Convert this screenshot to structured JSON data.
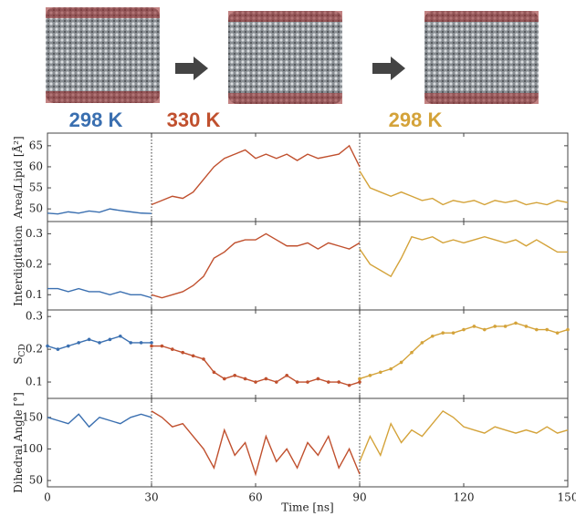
{
  "header": {
    "labels": [
      {
        "text": "298 K",
        "color": "#3a6fb0"
      },
      {
        "text": "330 K",
        "color": "#c0502e"
      },
      {
        "text": "298 K",
        "color": "#d4a33a"
      }
    ]
  },
  "chart_data": [
    {
      "type": "line",
      "ylabel": "Area/Lipid [Å²]",
      "xlim": [
        0,
        150
      ],
      "ylim": [
        47,
        68
      ],
      "yticks": [
        50,
        55,
        60,
        65
      ],
      "vlines": [
        30,
        90
      ],
      "x": [
        0,
        3,
        6,
        9,
        12,
        15,
        18,
        21,
        24,
        27,
        30,
        33,
        36,
        39,
        42,
        45,
        48,
        51,
        54,
        57,
        60,
        63,
        66,
        69,
        72,
        75,
        78,
        81,
        84,
        87,
        90,
        93,
        96,
        99,
        102,
        105,
        108,
        111,
        114,
        117,
        120,
        123,
        126,
        129,
        132,
        135,
        138,
        141,
        144,
        147,
        150
      ],
      "series": [
        {
          "color": "#3a6fb0",
          "values": [
            49,
            48.8,
            49.3,
            49,
            49.5,
            49.2,
            50,
            49.6,
            49.3,
            49,
            48.9,
            null,
            null,
            null,
            null,
            null,
            null,
            null,
            null,
            null,
            null,
            null,
            null,
            null,
            null,
            null,
            null,
            null,
            null,
            null,
            null,
            null,
            null,
            null,
            null,
            null,
            null,
            null,
            null,
            null,
            null,
            null,
            null,
            null,
            null,
            null,
            null,
            null,
            null,
            null,
            null
          ]
        },
        {
          "color": "#c0502e",
          "values": [
            null,
            null,
            null,
            null,
            null,
            null,
            null,
            null,
            null,
            null,
            51,
            52,
            53,
            52.5,
            54,
            57,
            60,
            62,
            63,
            64,
            62,
            63,
            62,
            63,
            61.5,
            63,
            62,
            62.5,
            63,
            65,
            60,
            null,
            null,
            null,
            null,
            null,
            null,
            null,
            null,
            null,
            null,
            null,
            null,
            null,
            null,
            null,
            null,
            null,
            null,
            null,
            null
          ]
        },
        {
          "color": "#d4a33a",
          "values": [
            null,
            null,
            null,
            null,
            null,
            null,
            null,
            null,
            null,
            null,
            null,
            null,
            null,
            null,
            null,
            null,
            null,
            null,
            null,
            null,
            null,
            null,
            null,
            null,
            null,
            null,
            null,
            null,
            null,
            null,
            59,
            55,
            54,
            53,
            54,
            53,
            52,
            52.5,
            51,
            52,
            51.5,
            52,
            51,
            52,
            51.5,
            52,
            51,
            51.5,
            51,
            52,
            51.5
          ]
        }
      ]
    },
    {
      "type": "line",
      "ylabel": "Interdigitation",
      "xlim": [
        0,
        150
      ],
      "ylim": [
        0.05,
        0.34
      ],
      "yticks": [
        0.1,
        0.2,
        0.3
      ],
      "vlines": [
        30,
        90
      ],
      "x": [
        0,
        3,
        6,
        9,
        12,
        15,
        18,
        21,
        24,
        27,
        30,
        33,
        36,
        39,
        42,
        45,
        48,
        51,
        54,
        57,
        60,
        63,
        66,
        69,
        72,
        75,
        78,
        81,
        84,
        87,
        90,
        93,
        96,
        99,
        102,
        105,
        108,
        111,
        114,
        117,
        120,
        123,
        126,
        129,
        132,
        135,
        138,
        141,
        144,
        147,
        150
      ],
      "series": [
        {
          "color": "#3a6fb0",
          "values": [
            0.12,
            0.12,
            0.11,
            0.12,
            0.11,
            0.11,
            0.1,
            0.11,
            0.1,
            0.1,
            0.09,
            null,
            null,
            null,
            null,
            null,
            null,
            null,
            null,
            null,
            null,
            null,
            null,
            null,
            null,
            null,
            null,
            null,
            null,
            null,
            null,
            null,
            null,
            null,
            null,
            null,
            null,
            null,
            null,
            null,
            null,
            null,
            null,
            null,
            null,
            null,
            null,
            null,
            null,
            null,
            null
          ]
        },
        {
          "color": "#c0502e",
          "values": [
            null,
            null,
            null,
            null,
            null,
            null,
            null,
            null,
            null,
            null,
            0.1,
            0.09,
            0.1,
            0.11,
            0.13,
            0.16,
            0.22,
            0.24,
            0.27,
            0.28,
            0.28,
            0.3,
            0.28,
            0.26,
            0.26,
            0.27,
            0.25,
            0.27,
            0.26,
            0.25,
            0.27,
            null,
            null,
            null,
            null,
            null,
            null,
            null,
            null,
            null,
            null,
            null,
            null,
            null,
            null,
            null,
            null,
            null,
            null,
            null,
            null
          ]
        },
        {
          "color": "#d4a33a",
          "values": [
            null,
            null,
            null,
            null,
            null,
            null,
            null,
            null,
            null,
            null,
            null,
            null,
            null,
            null,
            null,
            null,
            null,
            null,
            null,
            null,
            null,
            null,
            null,
            null,
            null,
            null,
            null,
            null,
            null,
            null,
            0.25,
            0.2,
            0.18,
            0.16,
            0.22,
            0.29,
            0.28,
            0.29,
            0.27,
            0.28,
            0.27,
            0.28,
            0.29,
            0.28,
            0.27,
            0.28,
            0.26,
            0.28,
            0.26,
            0.24,
            0.24
          ]
        }
      ]
    },
    {
      "type": "line",
      "ylabel": "S",
      "ylabel_subscript": "CD",
      "markers": true,
      "xlim": [
        0,
        150
      ],
      "ylim": [
        0.05,
        0.32
      ],
      "yticks": [
        0.1,
        0.2,
        0.3
      ],
      "vlines": [
        30,
        90
      ],
      "x": [
        0,
        3,
        6,
        9,
        12,
        15,
        18,
        21,
        24,
        27,
        30,
        33,
        36,
        39,
        42,
        45,
        48,
        51,
        54,
        57,
        60,
        63,
        66,
        69,
        72,
        75,
        78,
        81,
        84,
        87,
        90,
        93,
        96,
        99,
        102,
        105,
        108,
        111,
        114,
        117,
        120,
        123,
        126,
        129,
        132,
        135,
        138,
        141,
        144,
        147,
        150
      ],
      "series": [
        {
          "color": "#3a6fb0",
          "values": [
            0.21,
            0.2,
            0.21,
            0.22,
            0.23,
            0.22,
            0.23,
            0.24,
            0.22,
            0.22,
            0.22,
            null,
            null,
            null,
            null,
            null,
            null,
            null,
            null,
            null,
            null,
            null,
            null,
            null,
            null,
            null,
            null,
            null,
            null,
            null,
            null,
            null,
            null,
            null,
            null,
            null,
            null,
            null,
            null,
            null,
            null,
            null,
            null,
            null,
            null,
            null,
            null,
            null,
            null,
            null,
            null
          ]
        },
        {
          "color": "#c0502e",
          "values": [
            null,
            null,
            null,
            null,
            null,
            null,
            null,
            null,
            null,
            null,
            0.21,
            0.21,
            0.2,
            0.19,
            0.18,
            0.17,
            0.13,
            0.11,
            0.12,
            0.11,
            0.1,
            0.11,
            0.1,
            0.12,
            0.1,
            0.1,
            0.11,
            0.1,
            0.1,
            0.09,
            0.1,
            null,
            null,
            null,
            null,
            null,
            null,
            null,
            null,
            null,
            null,
            null,
            null,
            null,
            null,
            null,
            null,
            null,
            null,
            null,
            null
          ]
        },
        {
          "color": "#d4a33a",
          "values": [
            null,
            null,
            null,
            null,
            null,
            null,
            null,
            null,
            null,
            null,
            null,
            null,
            null,
            null,
            null,
            null,
            null,
            null,
            null,
            null,
            null,
            null,
            null,
            null,
            null,
            null,
            null,
            null,
            null,
            null,
            0.11,
            0.12,
            0.13,
            0.14,
            0.16,
            0.19,
            0.22,
            0.24,
            0.25,
            0.25,
            0.26,
            0.27,
            0.26,
            0.27,
            0.27,
            0.28,
            0.27,
            0.26,
            0.26,
            0.25,
            0.26
          ]
        }
      ]
    },
    {
      "type": "line",
      "ylabel": "Dihedral Angle [°]",
      "xlabel": "Time [ns]",
      "xlim": [
        0,
        150
      ],
      "xticks": [
        0,
        30,
        60,
        90,
        120,
        150
      ],
      "ylim": [
        40,
        180
      ],
      "yticks": [
        50,
        100,
        150
      ],
      "vlines": [
        30,
        90
      ],
      "x": [
        0,
        3,
        6,
        9,
        12,
        15,
        18,
        21,
        24,
        27,
        30,
        33,
        36,
        39,
        42,
        45,
        48,
        51,
        54,
        57,
        60,
        63,
        66,
        69,
        72,
        75,
        78,
        81,
        84,
        87,
        90,
        93,
        96,
        99,
        102,
        105,
        108,
        111,
        114,
        117,
        120,
        123,
        126,
        129,
        132,
        135,
        138,
        141,
        144,
        147,
        150
      ],
      "series": [
        {
          "color": "#3a6fb0",
          "values": [
            150,
            145,
            140,
            155,
            135,
            150,
            145,
            140,
            150,
            155,
            150,
            null,
            null,
            null,
            null,
            null,
            null,
            null,
            null,
            null,
            null,
            null,
            null,
            null,
            null,
            null,
            null,
            null,
            null,
            null,
            null,
            null,
            null,
            null,
            null,
            null,
            null,
            null,
            null,
            null,
            null,
            null,
            null,
            null,
            null,
            null,
            null,
            null,
            null,
            null,
            null
          ]
        },
        {
          "color": "#c0502e",
          "values": [
            null,
            null,
            null,
            null,
            null,
            null,
            null,
            null,
            null,
            null,
            160,
            150,
            135,
            140,
            120,
            100,
            70,
            130,
            90,
            110,
            60,
            120,
            80,
            100,
            70,
            110,
            90,
            120,
            70,
            100,
            60,
            null,
            null,
            null,
            null,
            null,
            null,
            null,
            null,
            null,
            null,
            null,
            null,
            null,
            null,
            null,
            null,
            null,
            null,
            null,
            null
          ]
        },
        {
          "color": "#d4a33a",
          "values": [
            null,
            null,
            null,
            null,
            null,
            null,
            null,
            null,
            null,
            null,
            null,
            null,
            null,
            null,
            null,
            null,
            null,
            null,
            null,
            null,
            null,
            null,
            null,
            null,
            null,
            null,
            null,
            null,
            null,
            null,
            80,
            120,
            90,
            140,
            110,
            130,
            120,
            140,
            160,
            150,
            135,
            130,
            125,
            135,
            130,
            125,
            130,
            125,
            135,
            125,
            130
          ]
        }
      ]
    }
  ]
}
